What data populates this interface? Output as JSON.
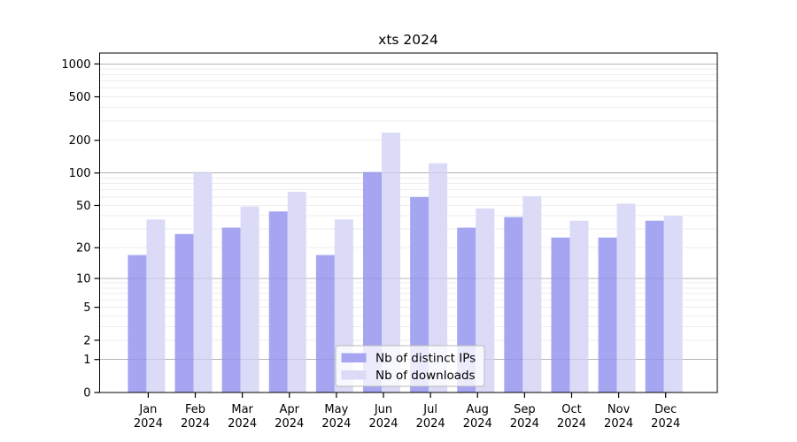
{
  "chart_data": {
    "type": "bar",
    "title": "xts 2024",
    "y_scale": "log1p",
    "grid": "major at 1,10,100,1000; minor log subdivisions",
    "legend_position": "bottom-center",
    "categories": [
      "Jan",
      "Feb",
      "Mar",
      "Apr",
      "May",
      "Jun",
      "Jul",
      "Aug",
      "Sep",
      "Oct",
      "Nov",
      "Dec"
    ],
    "category_year": "2024",
    "y_ticks": [
      0,
      1,
      2,
      5,
      10,
      20,
      50,
      100,
      200,
      500,
      1000
    ],
    "y_range": [
      0,
      1200
    ],
    "series": [
      {
        "name": "Nb of distinct IPs",
        "color": "#a5a5f1",
        "values": [
          17,
          27,
          31,
          44,
          17,
          102,
          60,
          31,
          39,
          25,
          25,
          36
        ]
      },
      {
        "name": "Nb of downloads",
        "color": "#dbdbf8",
        "values": [
          37,
          102,
          49,
          67,
          37,
          235,
          123,
          47,
          61,
          36,
          52,
          40
        ]
      }
    ],
    "colors": {
      "major_gridline": "#c4c4c4",
      "minor_gridline": "#ededed",
      "axis": "#000000",
      "legend_border": "#b8b8b8"
    }
  }
}
